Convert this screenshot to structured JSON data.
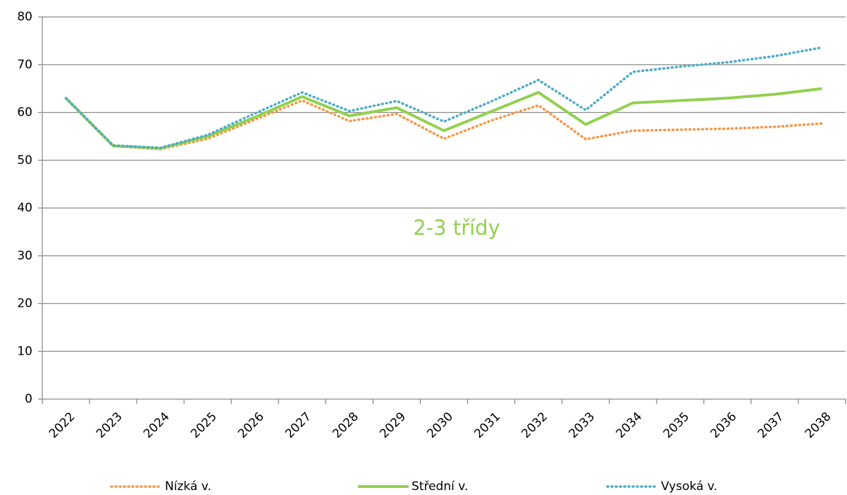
{
  "chart_data": {
    "type": "line",
    "annotation": "2-3 třídy",
    "categories": [
      "2022",
      "2023",
      "2024",
      "2025",
      "2026",
      "2027",
      "2028",
      "2029",
      "2030",
      "2031",
      "2032",
      "2033",
      "2034",
      "2035",
      "2036",
      "2037",
      "2038"
    ],
    "series": [
      {
        "name": "Nízká v.",
        "color": "#f79646",
        "style": "dotted",
        "values": [
          63,
          53,
          52.3,
          54.5,
          58.5,
          62.5,
          58.2,
          59.7,
          54.5,
          58.3,
          61.5,
          54.4,
          56.2,
          56.4,
          56.6,
          57.0,
          57.7
        ]
      },
      {
        "name": "Střední v.",
        "color": "#92d050",
        "style": "solid",
        "values": [
          63,
          53,
          52.5,
          55,
          59,
          63.3,
          59.3,
          61,
          56.2,
          60.2,
          64.2,
          57.5,
          62,
          62.5,
          63,
          63.8,
          65
        ]
      },
      {
        "name": "Vysoká v.",
        "color": "#4bacc6",
        "style": "dotted",
        "values": [
          63,
          53.1,
          52.6,
          55.3,
          59.8,
          64.2,
          60.3,
          62.4,
          58.1,
          62.3,
          66.8,
          60.5,
          68.5,
          69.6,
          70.5,
          71.8,
          73.6
        ]
      }
    ],
    "ylim": [
      0,
      80
    ],
    "yticks": [
      0,
      10,
      20,
      30,
      40,
      50,
      60,
      70,
      80
    ],
    "grid": true,
    "legend": "bottom"
  }
}
